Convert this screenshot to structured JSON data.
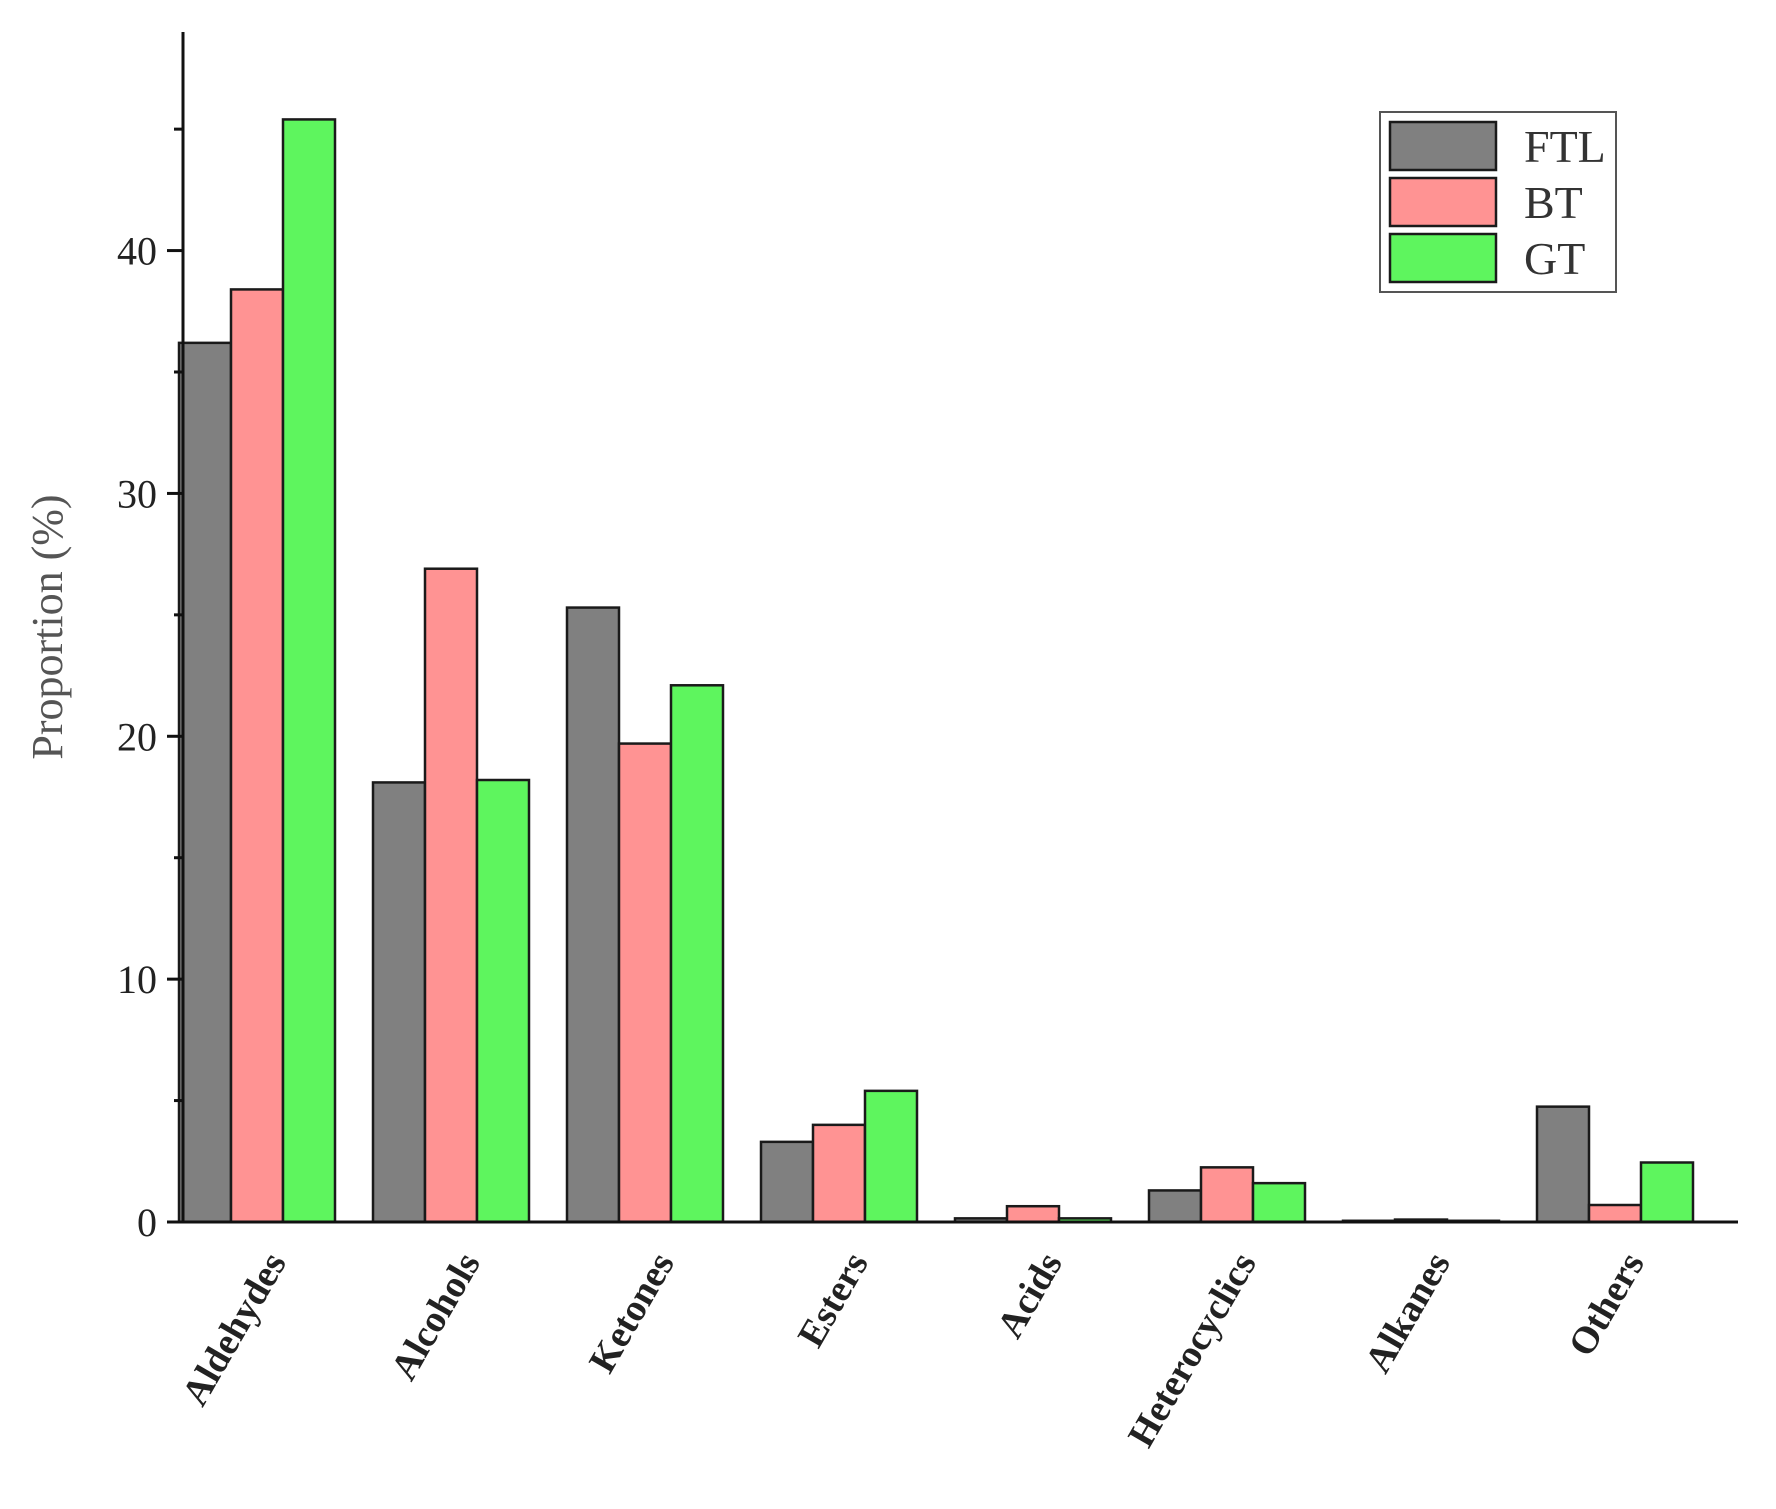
{
  "chart_data": {
    "type": "bar",
    "categories": [
      "Aldehydes",
      "Alcohols",
      "Ketones",
      "Esters",
      "Acids",
      "Heterocyclics",
      "Alkanes",
      "Others"
    ],
    "series": [
      {
        "name": "FTL",
        "color": "#808080",
        "values": [
          36.2,
          18.1,
          25.3,
          3.3,
          0.15,
          1.3,
          0.05,
          4.75
        ]
      },
      {
        "name": "BT",
        "color": "#ff9393",
        "values": [
          38.4,
          26.9,
          19.7,
          4.0,
          0.65,
          2.25,
          0.1,
          0.7
        ]
      },
      {
        "name": "GT",
        "color": "#5ef55e",
        "values": [
          45.4,
          18.2,
          22.1,
          5.4,
          0.15,
          1.6,
          0.05,
          2.45
        ]
      }
    ],
    "ylabel": "Proportion (%)",
    "xlabel": "",
    "ylim": [
      0,
      49
    ],
    "yticks": [
      0,
      10,
      20,
      30,
      40
    ],
    "ytick_labels": [
      "0",
      "10",
      "20",
      "30",
      "40"
    ],
    "minor_tick_step": 5,
    "grid": false,
    "legend_position": "top-right"
  }
}
